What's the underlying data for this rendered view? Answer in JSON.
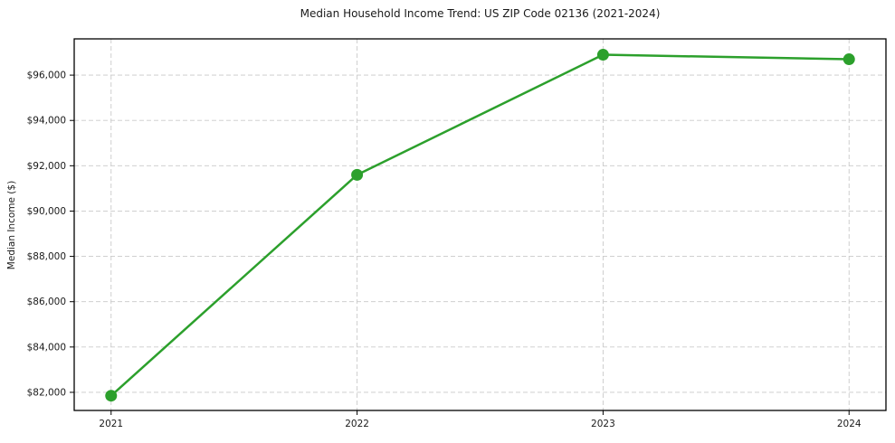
{
  "chart_data": {
    "type": "line",
    "title": "Median Household Income Trend: US ZIP Code 02136 (2021-2024)",
    "xlabel": "",
    "ylabel": "Median Income ($)",
    "x": [
      2021,
      2022,
      2023,
      2024
    ],
    "x_tick_labels": [
      "2021",
      "2022",
      "2023",
      "2024"
    ],
    "series": [
      {
        "name": "Median Household Income",
        "values": [
          81850,
          91600,
          96900,
          96700
        ]
      }
    ],
    "y_ticks": [
      {
        "value": 82000,
        "label": "$82,000"
      },
      {
        "value": 84000,
        "label": "$84,000"
      },
      {
        "value": 86000,
        "label": "$86,000"
      },
      {
        "value": 88000,
        "label": "$88,000"
      },
      {
        "value": 90000,
        "label": "$90,000"
      },
      {
        "value": 92000,
        "label": "$92,000"
      },
      {
        "value": 94000,
        "label": "$94,000"
      },
      {
        "value": 96000,
        "label": "$96,000"
      }
    ],
    "ylim": [
      81200,
      97600
    ],
    "xlim": [
      2020.85,
      2024.15
    ],
    "grid": "both, dashed",
    "legend": "none",
    "line_color": "#2ca02c",
    "marker": "circle",
    "grid_color": "#c9c9c9",
    "frame_color": "#000000",
    "background": "#ffffff"
  }
}
